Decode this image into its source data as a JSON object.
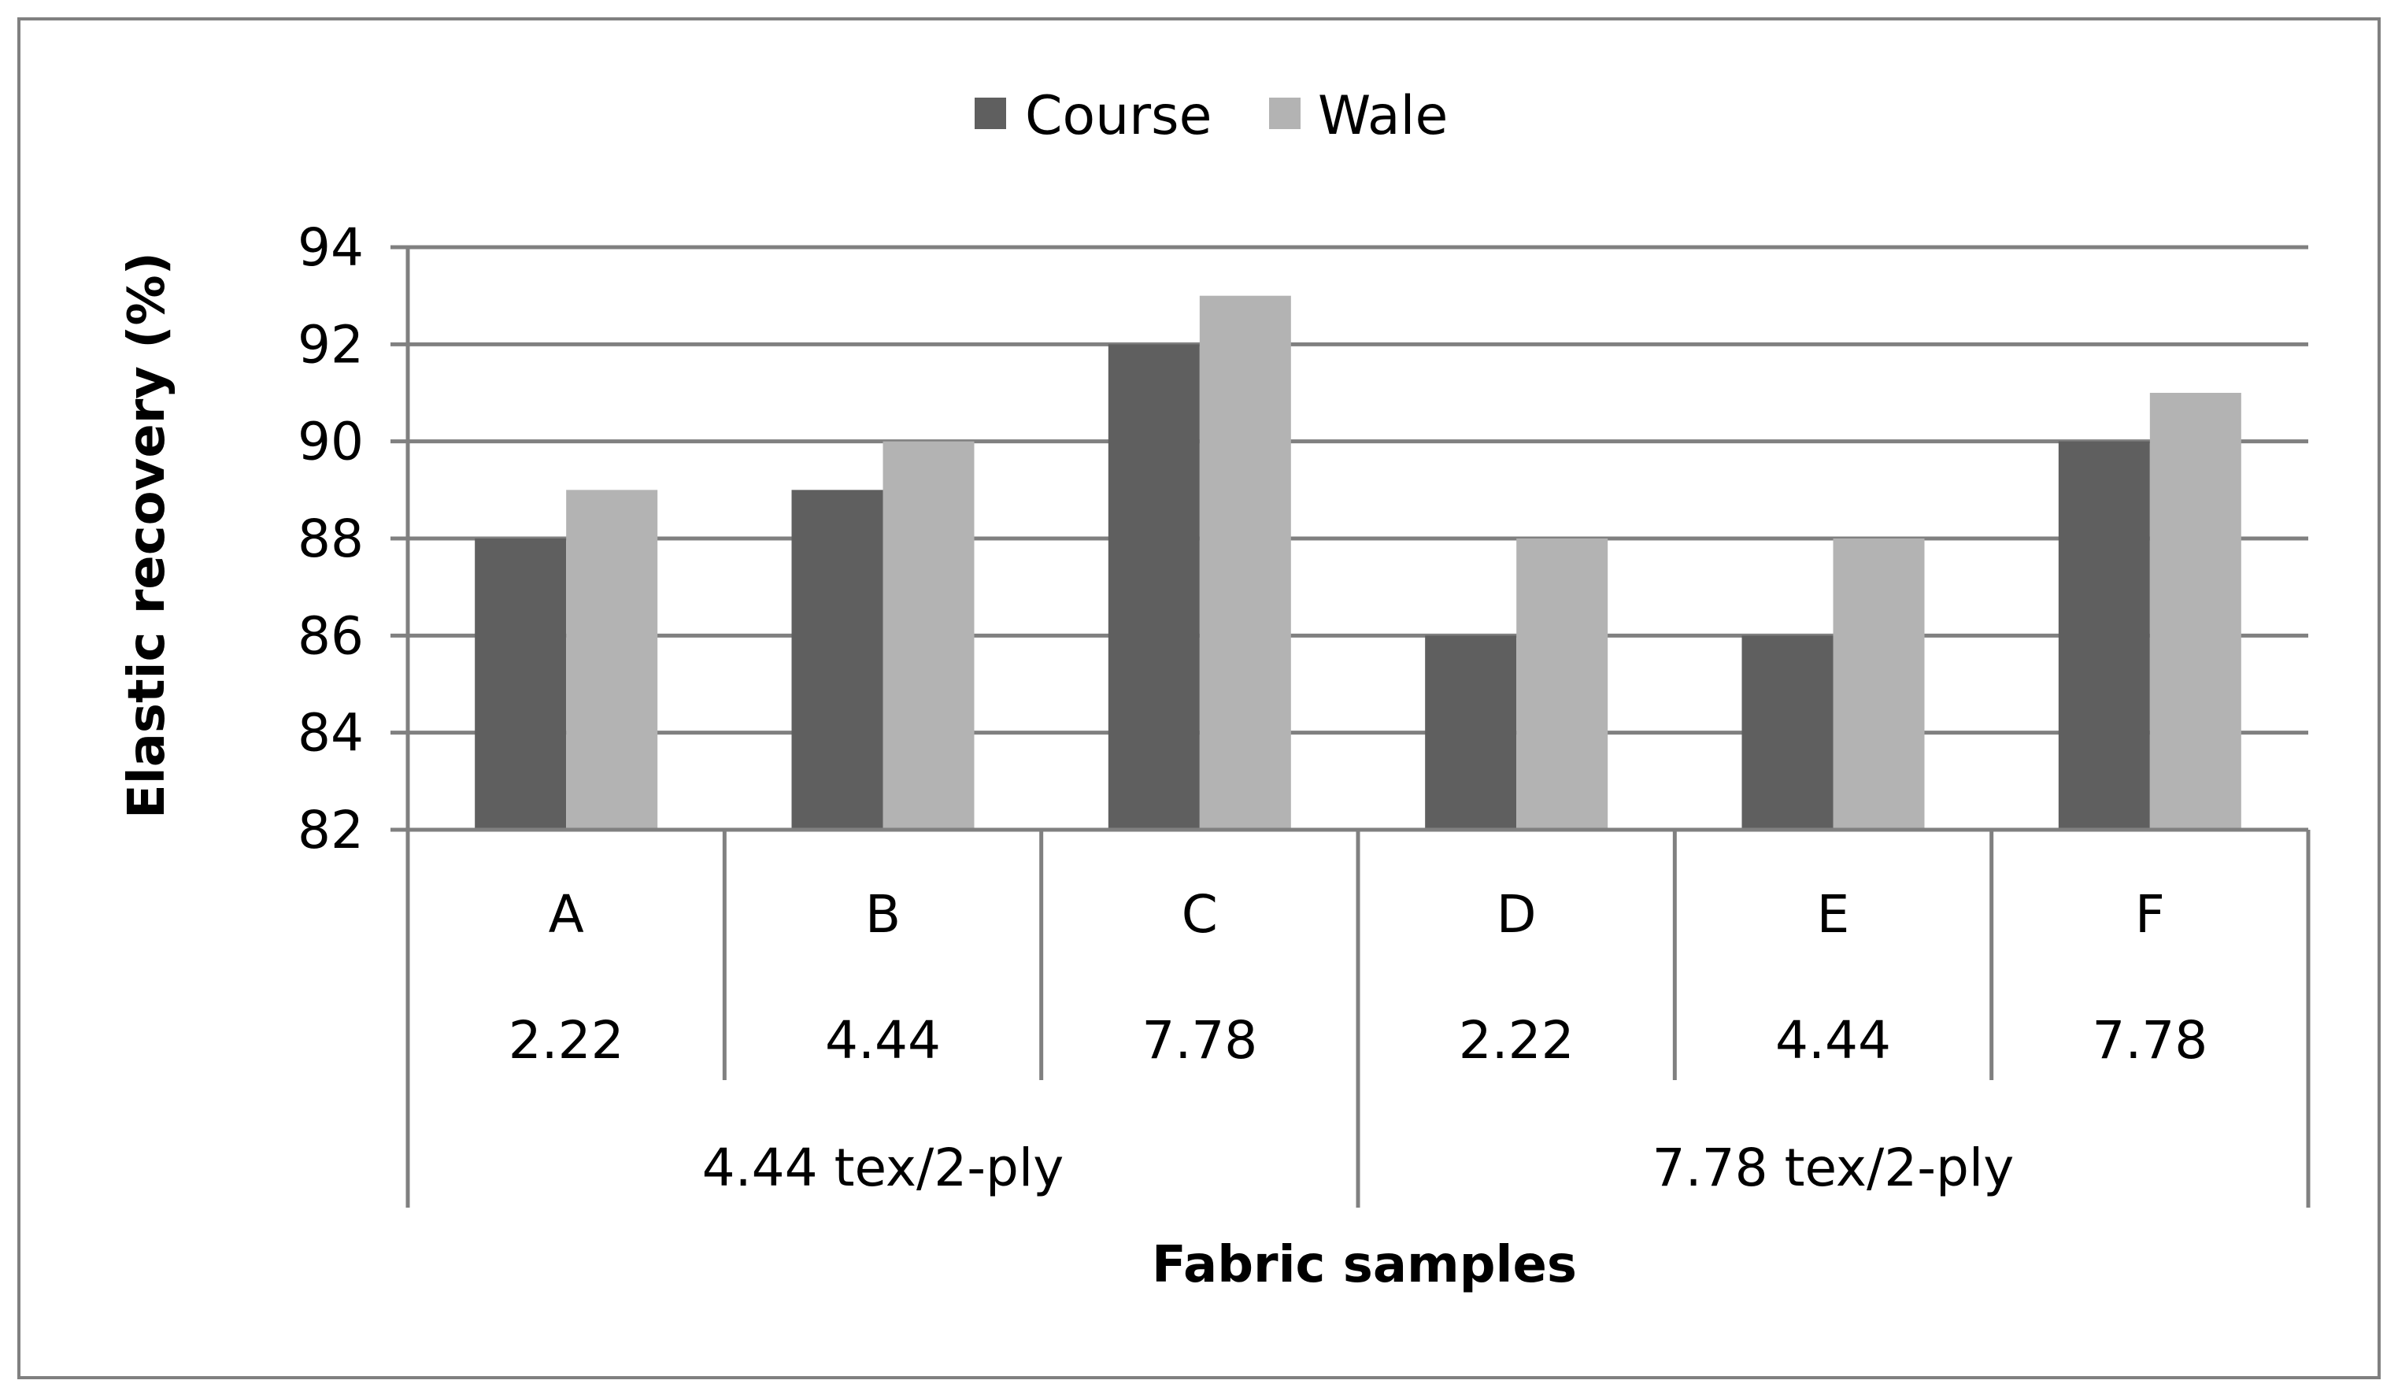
{
  "chart_data": {
    "type": "bar",
    "title": "",
    "xlabel": "Fabric samples",
    "ylabel": "Elastic recovery (%)",
    "ylim": [
      82,
      94
    ],
    "yticks": [
      "82",
      "84",
      "86",
      "88",
      "90",
      "92",
      "94"
    ],
    "grid": true,
    "legend_position": "top-center",
    "categories": [
      "A",
      "B",
      "C",
      "D",
      "E",
      "F"
    ],
    "subcategories": [
      "2.22",
      "4.44",
      "7.78",
      "2.22",
      "4.44",
      "7.78"
    ],
    "groups": [
      {
        "label": "4.44 tex/2-ply",
        "span": 3
      },
      {
        "label": "7.78 tex/2-ply",
        "span": 3
      }
    ],
    "series": [
      {
        "name": "Course",
        "values": [
          88,
          89,
          92,
          86,
          86,
          90
        ],
        "color": "#5f5f5f"
      },
      {
        "name": "Wale",
        "values": [
          89,
          90,
          93,
          88,
          88,
          91
        ],
        "color": "#b3b3b3"
      }
    ]
  },
  "style": {
    "border_color": "#808080",
    "grid_color": "#808080"
  }
}
